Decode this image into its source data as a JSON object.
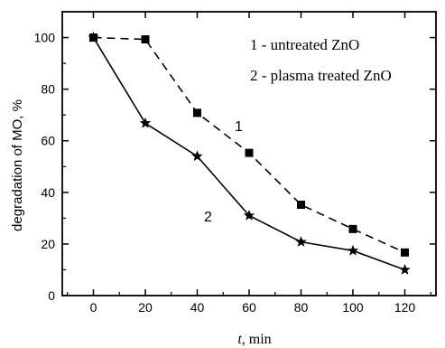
{
  "chart_data": {
    "type": "line",
    "x": [
      0,
      20,
      40,
      60,
      80,
      100,
      120
    ],
    "xlim": [
      -12,
      132
    ],
    "ylim": [
      0,
      110
    ],
    "xticks": [
      0,
      20,
      40,
      60,
      80,
      100,
      120
    ],
    "yticks": [
      0,
      20,
      40,
      60,
      80,
      100
    ],
    "x_tick_labels": [
      "0",
      "20",
      "40",
      "60",
      "80",
      "100",
      "120"
    ],
    "y_tick_labels": [
      "0",
      "20",
      "40",
      "60",
      "80",
      "100"
    ],
    "xlabel_italic": "t",
    "xlabel_rest": ", min",
    "ylabel": "degradation of MO, %",
    "grid": false,
    "legend_placement": "top-right",
    "legend": [
      "1 - untreated ZnO",
      "2 - plasma treated ZnO"
    ],
    "series": [
      {
        "label": "1",
        "marker": "square",
        "line_style": "dashed",
        "color": "#000000",
        "values": [
          100,
          99.3,
          70.8,
          55.3,
          35.2,
          25.8,
          16.7
        ]
      },
      {
        "label": "2",
        "marker": "star",
        "line_style": "solid",
        "color": "#000000",
        "values": [
          100,
          66.8,
          54,
          31,
          20.8,
          17.4,
          10
        ]
      }
    ]
  }
}
